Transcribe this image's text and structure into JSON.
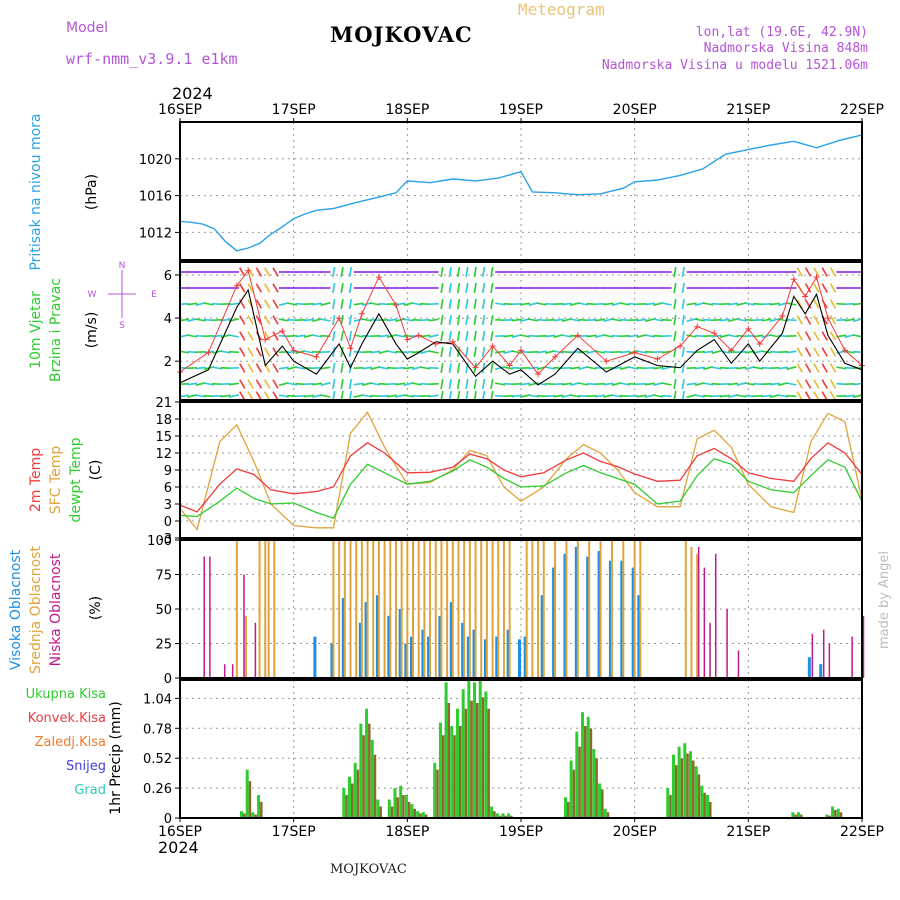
{
  "header": {
    "model_label": "Model",
    "model_name": "wrf-nmm_v3.9.1 e1km",
    "title": "MOJKOVAC",
    "chart_kind": "Meteogram",
    "coords": "lon,lat (19.6E, 42.9N)",
    "altitude": "Nadmorska Visina 848m",
    "model_altitude": "Nadmorska Visina u modelu 1521.06m",
    "year": "2024",
    "footer_place": "MOJKOVAC",
    "credit": "made by Angel"
  },
  "colors": {
    "pressure": "#2aa2e8",
    "t2m": "#ef3b3b",
    "sfc": "#e0a43a",
    "dewpt": "#2ecc2e",
    "high_cloud": "#1e8fe6",
    "mid_cloud": "#e0a43a",
    "low_cloud": "#c0198c",
    "precip_total": "#2ecc2e",
    "precip_conv": "#ef3b3b",
    "zaledj": "#f07a2a",
    "snow": "#4040e0",
    "grad": "#2ec8b8"
  },
  "chart_data": [
    {
      "type": "line",
      "panel": "pressure",
      "ylabel": [
        "Pritisak na nivou mora",
        "(hPa)"
      ],
      "yticks": [
        "1012",
        "1016",
        "1020"
      ],
      "ylim": [
        1009,
        1024
      ],
      "x_days": [
        0,
        0.1,
        0.2,
        0.3,
        0.4,
        0.5,
        0.6,
        0.7,
        0.8,
        0.9,
        1,
        1.1,
        1.2,
        1.35,
        1.5,
        1.7,
        1.9,
        2.0,
        2.2,
        2.4,
        2.6,
        2.8,
        3.0,
        3.1,
        3.3,
        3.5,
        3.7,
        3.9,
        4.0,
        4.2,
        4.4,
        4.6,
        4.8,
        5.0,
        5.2,
        5.4,
        5.6,
        5.8,
        6.0
      ],
      "series": [
        {
          "values": [
            1013.2,
            1013.1,
            1012.9,
            1012.4,
            1011.0,
            1010.0,
            1010.3,
            1010.8,
            1011.8,
            1012.6,
            1013.5,
            1014.0,
            1014.4,
            1014.6,
            1015.1,
            1015.7,
            1016.3,
            1017.6,
            1017.4,
            1017.8,
            1017.6,
            1017.9,
            1018.6,
            1016.4,
            1016.3,
            1016.1,
            1016.2,
            1016.8,
            1017.5,
            1017.7,
            1018.2,
            1018.9,
            1020.5,
            1021.0,
            1021.5,
            1021.9,
            1021.2,
            1022.0,
            1022.6
          ]
        }
      ]
    },
    {
      "type": "line",
      "panel": "wind",
      "ylabel": [
        "10m Vjetar",
        "Brzina i Pravac",
        "(m/s)"
      ],
      "compass": [
        "N",
        "W",
        "E",
        "S"
      ],
      "yticks": [
        "2",
        "4",
        "6"
      ],
      "ylim": [
        0.2,
        6.6
      ],
      "x_days": [
        0,
        0.25,
        0.5,
        0.6,
        0.75,
        0.9,
        1.0,
        1.2,
        1.4,
        1.5,
        1.6,
        1.75,
        1.9,
        2.0,
        2.1,
        2.25,
        2.4,
        2.6,
        2.75,
        2.9,
        3.0,
        3.15,
        3.3,
        3.5,
        3.75,
        4.0,
        4.2,
        4.4,
        4.55,
        4.7,
        4.85,
        5.0,
        5.1,
        5.3,
        5.4,
        5.5,
        5.6,
        5.7,
        5.85,
        6.0
      ],
      "series": [
        {
          "name": "speed",
          "values": [
            1.0,
            1.6,
            4.5,
            5.3,
            1.8,
            2.7,
            2.0,
            1.4,
            2.8,
            1.7,
            2.8,
            4.2,
            2.8,
            2.1,
            2.4,
            2.9,
            2.8,
            1.3,
            2.0,
            1.4,
            1.6,
            0.9,
            1.4,
            2.6,
            1.5,
            2.2,
            1.8,
            1.7,
            2.5,
            3.0,
            1.9,
            2.8,
            2.0,
            3.3,
            5.0,
            4.2,
            5.1,
            3.2,
            1.9,
            1.6
          ]
        },
        {
          "name": "gust",
          "values": [
            1.5,
            2.4,
            5.5,
            6.2,
            3.0,
            3.4,
            2.5,
            2.2,
            4.0,
            2.6,
            4.2,
            5.9,
            4.6,
            3.0,
            3.2,
            2.8,
            2.9,
            1.7,
            2.7,
            1.8,
            2.5,
            1.4,
            2.2,
            3.2,
            2.0,
            2.4,
            2.1,
            2.7,
            3.6,
            3.3,
            2.5,
            3.5,
            2.8,
            4.1,
            5.8,
            5.0,
            5.9,
            4.0,
            2.5,
            1.8
          ]
        }
      ]
    },
    {
      "type": "line",
      "panel": "temperature",
      "ylabel": [
        "2m Temp",
        "SFC Temp",
        "dewpt Temp",
        "(C)"
      ],
      "yticks": [
        "-3",
        "0",
        "3",
        "6",
        "9",
        "12",
        "15",
        "18",
        "21"
      ],
      "ylim": [
        -3,
        21
      ],
      "x_days": [
        0,
        0.15,
        0.35,
        0.5,
        0.65,
        0.8,
        1.0,
        1.2,
        1.35,
        1.5,
        1.65,
        1.8,
        2.0,
        2.2,
        2.4,
        2.55,
        2.7,
        2.85,
        3.0,
        3.2,
        3.4,
        3.55,
        3.7,
        3.85,
        4.0,
        4.2,
        4.4,
        4.55,
        4.7,
        4.85,
        5.0,
        5.2,
        5.4,
        5.55,
        5.7,
        5.85,
        6.0
      ],
      "series": [
        {
          "name": "2m Temp",
          "values": [
            2.8,
            1.6,
            6.5,
            9.2,
            8.2,
            5.5,
            4.8,
            5.2,
            6.0,
            11.5,
            13.8,
            12.0,
            8.5,
            8.6,
            9.5,
            11.8,
            11.0,
            9.0,
            7.8,
            8.5,
            10.8,
            12.0,
            10.5,
            9.6,
            8.3,
            7.0,
            7.2,
            11.5,
            12.8,
            11.0,
            8.5,
            7.5,
            7.0,
            11.0,
            13.8,
            12.0,
            8.2
          ]
        },
        {
          "name": "SFC Temp",
          "values": [
            2.2,
            -1.5,
            14.0,
            17.0,
            10.5,
            3.0,
            -0.8,
            -1.2,
            -1.2,
            15.5,
            19.2,
            13.0,
            6.5,
            6.8,
            9.0,
            12.5,
            11.5,
            6.0,
            3.5,
            6.0,
            11.0,
            13.5,
            12.0,
            9.0,
            5.0,
            2.5,
            2.5,
            14.5,
            16.0,
            13.0,
            6.5,
            2.5,
            1.5,
            14.0,
            19.0,
            17.5,
            3.8
          ]
        },
        {
          "name": "dewpt Temp",
          "values": [
            1.0,
            0.8,
            3.5,
            5.8,
            4.0,
            3.0,
            3.2,
            1.5,
            0.5,
            6.5,
            10.0,
            8.5,
            6.5,
            7.0,
            8.8,
            10.8,
            9.5,
            7.5,
            6.0,
            6.2,
            8.5,
            9.8,
            8.5,
            7.5,
            6.5,
            3.0,
            3.5,
            8.0,
            11.0,
            10.0,
            7.0,
            5.5,
            5.0,
            8.0,
            10.8,
            9.5,
            3.5
          ]
        }
      ]
    },
    {
      "type": "bar",
      "panel": "cloud",
      "ylabel": [
        "Visoka Oblacnost",
        "Srednja Oblacnost",
        "Niska Oblacnost",
        "(%)"
      ],
      "yticks": [
        "0",
        "25",
        "50",
        "75",
        "100"
      ],
      "ylim": [
        0,
        100
      ],
      "x_days": [
        0.2,
        0.25,
        0.38,
        0.45,
        0.5,
        0.55,
        0.58,
        0.65,
        0.7,
        0.72,
        0.75,
        0.78,
        0.8,
        0.83,
        1.0,
        1.2,
        1.25,
        1.35,
        1.4,
        1.45,
        1.5,
        1.55,
        1.6,
        1.65,
        1.7,
        1.75,
        1.8,
        1.85,
        1.9,
        1.95,
        2.0,
        2.05,
        2.1,
        2.15,
        2.2,
        2.25,
        2.3,
        2.35,
        2.4,
        2.45,
        2.5,
        2.55,
        2.6,
        2.65,
        2.7,
        2.75,
        2.8,
        2.85,
        2.9,
        2.95,
        3.0,
        3.05,
        3.1,
        3.15,
        3.2,
        3.3,
        3.4,
        3.5,
        3.6,
        3.7,
        3.8,
        3.9,
        4.0,
        4.05,
        4.1,
        4.15,
        4.2,
        4.3,
        4.4,
        4.45,
        4.5,
        4.55,
        4.6,
        4.65,
        4.7,
        4.75,
        4.8,
        4.9,
        5.0,
        5.1,
        5.2,
        5.3,
        5.4,
        5.5,
        5.55,
        5.6,
        5.65,
        5.7,
        5.75,
        5.8,
        5.85,
        5.9,
        5.95,
        6.0
      ],
      "series": [
        {
          "name": "Visoka Oblacnost",
          "values": [
            0,
            0,
            0,
            0,
            0,
            0,
            0,
            0,
            0,
            0,
            0,
            0,
            0,
            0,
            0,
            30,
            0,
            25,
            0,
            58,
            0,
            0,
            40,
            55,
            0,
            60,
            0,
            45,
            0,
            50,
            25,
            30,
            0,
            35,
            30,
            0,
            45,
            0,
            55,
            0,
            40,
            30,
            35,
            0,
            28,
            0,
            30,
            0,
            35,
            0,
            28,
            30,
            0,
            0,
            60,
            80,
            90,
            95,
            88,
            92,
            85,
            85,
            80,
            60,
            0,
            0,
            0,
            0,
            0,
            0,
            0,
            0,
            0,
            0,
            0,
            0,
            0,
            0,
            0,
            0,
            0,
            0,
            0,
            0,
            15,
            0,
            10,
            0,
            0,
            0,
            0,
            0,
            0,
            0
          ]
        },
        {
          "name": "Srednja Oblacnost",
          "values": [
            0,
            0,
            0,
            0,
            100,
            0,
            45,
            0,
            100,
            0,
            100,
            100,
            0,
            100,
            0,
            0,
            0,
            100,
            100,
            100,
            100,
            100,
            100,
            100,
            100,
            100,
            100,
            100,
            100,
            100,
            100,
            100,
            100,
            100,
            100,
            100,
            100,
            100,
            100,
            100,
            100,
            100,
            100,
            100,
            100,
            100,
            100,
            100,
            100,
            0,
            0,
            100,
            100,
            100,
            100,
            100,
            100,
            100,
            100,
            100,
            100,
            100,
            100,
            100,
            0,
            0,
            0,
            0,
            0,
            100,
            95,
            90,
            0,
            0,
            0,
            0,
            0,
            0,
            0,
            0,
            0,
            0,
            0,
            0,
            0,
            0,
            0,
            0,
            0,
            0,
            0,
            0,
            0,
            0
          ]
        },
        {
          "name": "Niska Oblacnost",
          "values": [
            88,
            88,
            10,
            10,
            0,
            75,
            0,
            40,
            0,
            0,
            0,
            0,
            0,
            0,
            0,
            0,
            0,
            0,
            0,
            0,
            0,
            0,
            0,
            0,
            0,
            0,
            0,
            0,
            0,
            0,
            0,
            0,
            0,
            0,
            0,
            0,
            0,
            0,
            0,
            0,
            0,
            0,
            0,
            0,
            0,
            0,
            0,
            0,
            0,
            0,
            0,
            0,
            0,
            0,
            0,
            0,
            0,
            0,
            0,
            0,
            0,
            0,
            0,
            0,
            0,
            0,
            0,
            0,
            0,
            0,
            0,
            95,
            80,
            40,
            90,
            0,
            50,
            20,
            0,
            0,
            0,
            0,
            0,
            0,
            32,
            0,
            35,
            25,
            0,
            0,
            0,
            30,
            0,
            45
          ]
        }
      ]
    },
    {
      "type": "bar",
      "panel": "precip",
      "ylabel": [
        "1hr Precip (mm)"
      ],
      "legend": [
        "Ukupna Kisa",
        "Konvek.Kisa",
        "Zaledj.Kisa",
        "Snijeg",
        "Grad"
      ],
      "yticks": [
        "0",
        "0.26",
        "0.52",
        "0.78",
        "1.04"
      ],
      "ylim": [
        0,
        1.2
      ],
      "x_ticks": [
        "16SEP",
        "17SEP",
        "18SEP",
        "19SEP",
        "20SEP",
        "21SEP",
        "22SEP"
      ],
      "x_days": [
        0.55,
        0.6,
        0.65,
        0.7,
        1.45,
        1.5,
        1.55,
        1.6,
        1.65,
        1.7,
        1.75,
        1.85,
        1.9,
        1.95,
        2.0,
        2.05,
        2.1,
        2.15,
        2.25,
        2.3,
        2.35,
        2.4,
        2.45,
        2.5,
        2.55,
        2.6,
        2.65,
        2.7,
        2.75,
        2.8,
        2.85,
        2.9,
        3.4,
        3.45,
        3.5,
        3.55,
        3.6,
        3.65,
        3.7,
        3.75,
        4.3,
        4.35,
        4.4,
        4.45,
        4.5,
        4.55,
        4.6,
        4.65,
        5.4,
        5.45,
        5.7,
        5.75,
        5.8
      ],
      "series": [
        {
          "name": "Ukupna Kisa",
          "values": [
            0.06,
            0.42,
            0.05,
            0.2,
            0.26,
            0.36,
            0.48,
            0.82,
            0.95,
            0.68,
            0.16,
            0.16,
            0.26,
            0.28,
            0.2,
            0.12,
            0.06,
            0.05,
            0.48,
            0.83,
            1.18,
            0.8,
            0.95,
            1.12,
            1.2,
            1.18,
            1.21,
            1.1,
            0.1,
            0.04,
            0.04,
            0.04,
            0.18,
            0.5,
            0.75,
            0.92,
            0.88,
            0.6,
            0.3,
            0.08,
            0.26,
            0.55,
            0.62,
            0.65,
            0.58,
            0.45,
            0.28,
            0.2,
            0.05,
            0.05,
            0.03,
            0.1,
            0.08
          ]
        },
        {
          "name": "Konvek.Kisa",
          "values": [
            0.04,
            0.32,
            0.03,
            0.14,
            0.2,
            0.3,
            0.42,
            0.72,
            0.82,
            0.55,
            0.1,
            0.1,
            0.18,
            0.2,
            0.14,
            0.08,
            0.04,
            0.03,
            0.42,
            0.72,
            1.0,
            0.72,
            0.8,
            0.95,
            1.02,
            1.0,
            1.05,
            0.95,
            0.06,
            0.02,
            0.02,
            0.02,
            0.14,
            0.42,
            0.62,
            0.8,
            0.78,
            0.52,
            0.25,
            0.05,
            0.2,
            0.46,
            0.52,
            0.56,
            0.5,
            0.38,
            0.22,
            0.14,
            0.03,
            0.03,
            0.02,
            0.07,
            0.05
          ]
        }
      ]
    }
  ]
}
